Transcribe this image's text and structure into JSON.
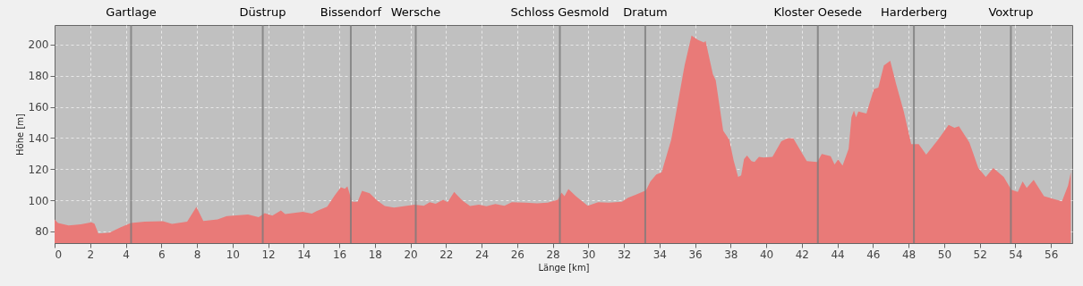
{
  "chart_data": {
    "type": "area",
    "xlabel": "Länge [km]",
    "ylabel": "Höhe [m]",
    "xlim": [
      0,
      57.2
    ],
    "ylim": [
      72.5,
      212.5
    ],
    "xticks": [
      0,
      2,
      4,
      6,
      8,
      10,
      12,
      14,
      16,
      18,
      20,
      22,
      24,
      26,
      28,
      30,
      32,
      34,
      36,
      38,
      40,
      42,
      44,
      46,
      48,
      50,
      52,
      54,
      56
    ],
    "yticks": [
      80,
      100,
      120,
      140,
      160,
      180,
      200
    ],
    "grid": true,
    "series": [
      {
        "color": "#e97a78",
        "x": [
          0,
          0.19,
          0.79,
          1.47,
          2.07,
          2.24,
          2.46,
          3.09,
          3.69,
          4.29,
          5.06,
          6.09,
          6.6,
          7.45,
          7.97,
          8.36,
          9.16,
          9.68,
          10.87,
          11.47,
          11.81,
          12.24,
          12.72,
          12.96,
          13.95,
          14.46,
          14.72,
          15.32,
          15.74,
          16.09,
          16.31,
          16.46,
          16.72,
          17.03,
          17.28,
          17.71,
          18.14,
          18.56,
          19.08,
          20.25,
          20.75,
          21.09,
          21.42,
          21.84,
          22.09,
          22.46,
          22.93,
          23.35,
          23.85,
          24.27,
          24.77,
          25.28,
          25.7,
          26.45,
          27.12,
          27.71,
          28.29,
          28.49,
          28.66,
          28.88,
          29.3,
          29.97,
          30.55,
          31.14,
          31.89,
          32.23,
          32.65,
          33.24,
          33.49,
          33.82,
          34.12,
          34.66,
          34.99,
          35.41,
          35.8,
          36.17,
          36.5,
          36.59,
          37.0,
          37.16,
          37.58,
          37.92,
          38.17,
          38.42,
          38.59,
          38.75,
          38.92,
          39.17,
          39.34,
          39.59,
          39.85,
          40.35,
          40.85,
          41.19,
          41.52,
          41.94,
          42.28,
          42.87,
          43.12,
          43.62,
          43.84,
          44.04,
          44.29,
          44.63,
          44.79,
          44.93,
          45.05,
          45.18,
          45.63,
          46.05,
          46.3,
          46.61,
          46.97,
          47.31,
          47.73,
          48.15,
          48.57,
          48.99,
          49.66,
          50.25,
          50.58,
          50.83,
          51.42,
          51.92,
          52.34,
          52.76,
          53.35,
          53.77,
          54.14,
          54.41,
          54.64,
          55.03,
          55.61,
          56.62,
          56.96,
          57.12
        ],
        "values": [
          87.7,
          85.4,
          83.9,
          84.6,
          85.8,
          85.0,
          78.7,
          79.3,
          82.5,
          85.4,
          86.3,
          86.5,
          84.8,
          86.3,
          95.7,
          86.7,
          87.7,
          89.8,
          90.8,
          89.2,
          91.7,
          90.1,
          93.4,
          91.1,
          92.6,
          91.5,
          93.0,
          95.9,
          103.0,
          108.3,
          107.4,
          108.9,
          99.1,
          99.1,
          106.0,
          104.5,
          99.7,
          96.3,
          95.3,
          97.2,
          96.5,
          98.8,
          97.8,
          100.3,
          98.8,
          105.3,
          99.7,
          96.3,
          97.2,
          96.1,
          97.6,
          96.5,
          98.8,
          98.4,
          98.0,
          98.4,
          100.3,
          104.9,
          102.6,
          107.2,
          102.6,
          96.5,
          98.8,
          98.4,
          99.1,
          101.6,
          103.5,
          106.4,
          112.1,
          116.5,
          117.9,
          138.9,
          159.9,
          186.6,
          205.7,
          202.9,
          201.3,
          202.3,
          180.9,
          177.1,
          144.6,
          138.9,
          125.5,
          115.0,
          115.9,
          126.5,
          128.7,
          125.1,
          124.5,
          127.8,
          127.4,
          127.8,
          137.9,
          139.8,
          139.8,
          131.6,
          125.1,
          124.5,
          129.7,
          128.3,
          123.0,
          126.2,
          122.3,
          133.1,
          153.2,
          157.6,
          153.2,
          157.0,
          155.7,
          171.3,
          172.3,
          186.6,
          189.5,
          174.2,
          157.0,
          136.0,
          136.0,
          129.3,
          138.9,
          148.4,
          146.5,
          147.5,
          137.0,
          120.7,
          115.0,
          120.7,
          115.0,
          106.8,
          105.3,
          112.1,
          107.9,
          113.1,
          102.6,
          99.3,
          109.3,
          117.9
        ]
      }
    ],
    "ref_lines": [
      {
        "axis": "x",
        "value": 4.3,
        "label": "Gartlage",
        "color": "#7a7a7a",
        "line_style": "solid"
      },
      {
        "axis": "x",
        "value": 11.7,
        "label": "Düstrup",
        "color": "#7a7a7a",
        "line_style": "solid"
      },
      {
        "axis": "x",
        "value": 16.65,
        "label": "Bissendorf",
        "color": "#7a7a7a",
        "line_style": "solid"
      },
      {
        "axis": "x",
        "value": 20.3,
        "label": "Wersche",
        "color": "#7a7a7a",
        "line_style": "solid"
      },
      {
        "axis": "x",
        "value": 28.4,
        "label": "Schloss Gesmold",
        "color": "#7a7a7a",
        "line_style": "solid"
      },
      {
        "axis": "x",
        "value": 33.2,
        "label": "Dratum",
        "color": "#7a7a7a",
        "line_style": "solid"
      },
      {
        "axis": "x",
        "value": 42.9,
        "label": "Kloster Oesede",
        "color": "#7a7a7a",
        "line_style": "solid"
      },
      {
        "axis": "x",
        "value": 48.3,
        "label": "Harderberg",
        "color": "#7a7a7a",
        "line_style": "solid"
      },
      {
        "axis": "x",
        "value": 53.75,
        "label": "Voxtrup",
        "color": "#7a7a7a",
        "line_style": "solid"
      }
    ]
  }
}
